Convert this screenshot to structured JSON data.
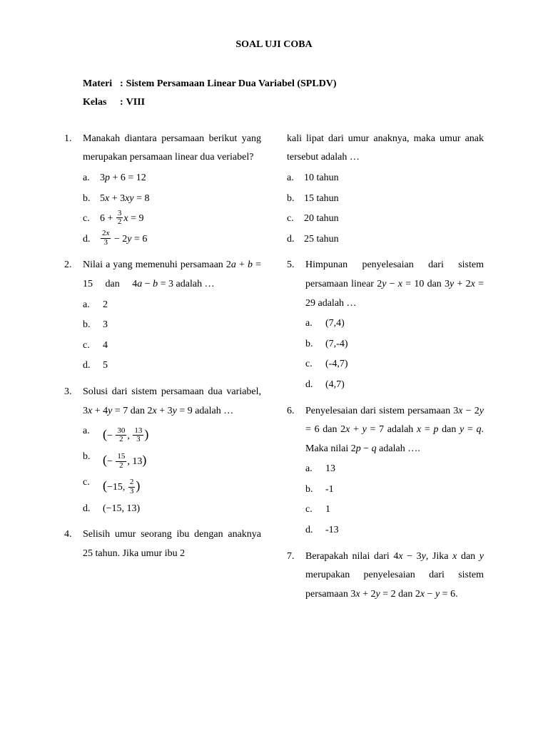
{
  "title": "SOAL UJI COBA",
  "header": {
    "materi_label": "Materi",
    "materi_value": "Sistem Persamaan Linear Dua Variabel (SPLDV)",
    "kelas_label": "Kelas",
    "kelas_value": "VIII"
  },
  "q1": {
    "num": "1.",
    "text": "Manakah diantara persamaan berikut yang merupakan persamaan linear dua veriabel?",
    "a": "a.",
    "b": "b.",
    "c": "c.",
    "d": "d."
  },
  "q2": {
    "num": "2.",
    "text_pre": "Nilai a yang memenuhi persamaan ",
    "text_mid": " dan ",
    "text_post": " adalah …",
    "a": "a.",
    "av": "2",
    "b": "b.",
    "bv": "3",
    "c": "c.",
    "cv": "4",
    "d": "d.",
    "dv": "5"
  },
  "q3": {
    "num": "3.",
    "text_pre": "Solusi dari sistem persamaan dua variabel, ",
    "text_mid": " dan ",
    "text_post": " adalah …",
    "a": "a.",
    "b": "b.",
    "c": "c.",
    "d": "d."
  },
  "q4": {
    "num": "4.",
    "text": "Selisih umur seorang ibu dengan anaknya 25 tahun. Jika umur ibu 2",
    "cont": "kali lipat dari umur anaknya, maka umur anak tersebut adalah …",
    "a": "a.",
    "av": "10 tahun",
    "b": "b.",
    "bv": "15 tahun",
    "c": "c.",
    "cv": "20 tahun",
    "d": "d.",
    "dv": "25 tahun"
  },
  "q5": {
    "num": "5.",
    "text_pre": "Himpunan penyelesaian dari sistem persamaan linear ",
    "text_mid": " dan ",
    "text_post": " adalah …",
    "a": "a.",
    "av": "(7,4)",
    "b": "b.",
    "bv": "(7,-4)",
    "c": "c.",
    "cv": "(-4,7)",
    "d": "d.",
    "dv": "(4,7)"
  },
  "q6": {
    "num": "6.",
    "text_pre": "Penyelesaian dari sistem persamaan ",
    "text_mid1": " dan ",
    "text_mid2": " adalah ",
    "text_mid3": " dan ",
    "text_mid4": ". Maka nilai ",
    "text_post": " adalah ….",
    "a": "a.",
    "av": "13",
    "b": "b.",
    "bv": "-1",
    "c": "c.",
    "cv": "1",
    "d": "d.",
    "dv": "-13"
  },
  "q7": {
    "num": "7.",
    "text_pre": "Berapakah nilai dari ",
    "text_mid1": ", Jika ",
    "text_mid2": " dan ",
    "text_mid3": " merupakan penyelesaian dari sistem persamaan ",
    "text_mid4": " dan ",
    "text_post": "."
  }
}
